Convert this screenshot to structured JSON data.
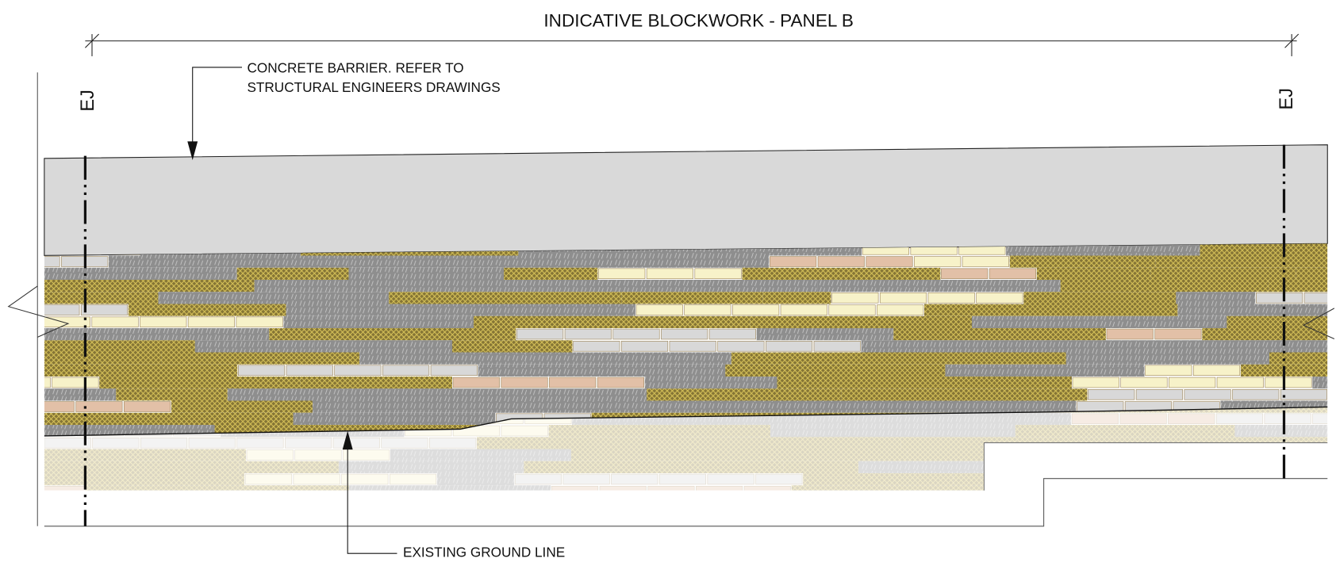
{
  "title": "INDICATIVE BLOCKWORK - PANEL B",
  "barrier_note": {
    "lines": [
      "CONCRETE BARRIER. REFER TO",
      "STRUCTURAL ENGINEERS DRAWINGS"
    ]
  },
  "ground_note": "EXISTING GROUND LINE",
  "joints": [
    "EJ",
    "EJ"
  ]
}
